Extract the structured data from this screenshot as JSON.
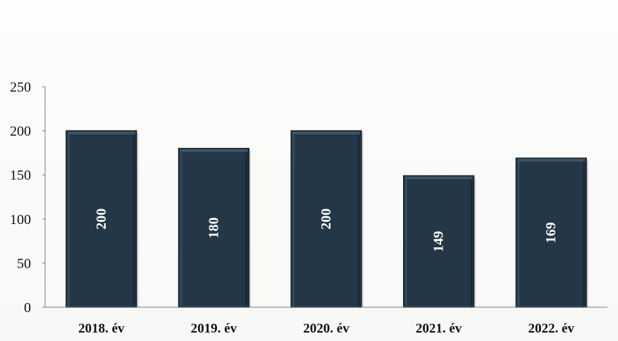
{
  "chart_data": {
    "type": "bar",
    "title": "",
    "xlabel": "",
    "ylabel": "",
    "categories": [
      "2018. év",
      "2019. év",
      "2020. év",
      "2021. év",
      "2022. év"
    ],
    "values": [
      200,
      180,
      200,
      149,
      169
    ],
    "data_labels": [
      "200",
      "180",
      "200",
      "149",
      "169"
    ],
    "ylim": [
      0,
      250
    ],
    "yticks": [
      0,
      50,
      100,
      150,
      200,
      250
    ],
    "ytick_labels": [
      "0",
      "50",
      "100",
      "150",
      "200",
      "250"
    ],
    "grid": false,
    "legend": "none",
    "data_label_orientation": "vertical",
    "colors": {
      "bar": "#243746",
      "bar_highlight": "#3d5566",
      "bar_shadow": "#16232d",
      "data_label": "#ffffff",
      "text": "#111111",
      "axis": "#7a7a7a"
    }
  }
}
